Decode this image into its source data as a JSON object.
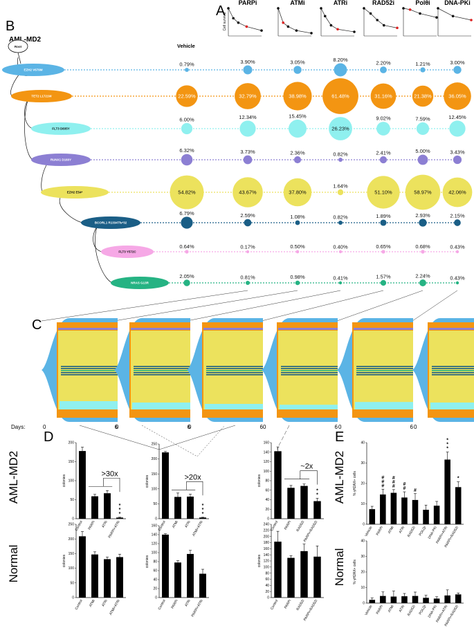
{
  "panels": {
    "A": "A",
    "B": "B",
    "C": "C",
    "D": "D",
    "E": "E"
  },
  "sample_title": "AML-MD2",
  "vehicle_label": "Vehicle",
  "root_label": "Root",
  "treatments": [
    "PARPi",
    "ATMi",
    "ATRi",
    "RAD52i",
    "Polθi",
    "DNA-PKi"
  ],
  "survival_ylabel": "Cell survival",
  "clones": [
    {
      "name": "EZH2 V679M",
      "color": "#5bb4e5",
      "text_color": "#ffffff",
      "values": [
        "0.79%",
        "3.90%",
        "3.05%",
        "8.20%",
        "2.20%",
        "1.21%",
        "3.00%"
      ],
      "numeric": [
        0.79,
        3.9,
        3.05,
        8.2,
        2.2,
        1.21,
        3.0
      ]
    },
    {
      "name": "TET2 L1721W",
      "color": "#f39512",
      "text_color": "#ffffff",
      "values": [
        "22.59%",
        "32.79%",
        "38.98%",
        "61.48%",
        "31.16%",
        "21.38%",
        "36.05%"
      ],
      "numeric": [
        22.59,
        32.79,
        38.98,
        61.48,
        31.16,
        21.38,
        36.05
      ]
    },
    {
      "name": "FLT3 D835Y",
      "color": "#8ff0ef",
      "text_color": "#111111",
      "values": [
        "6.00%",
        "12.34%",
        "15.45%",
        "26.23%",
        "9.02%",
        "7.59%",
        "12.45%"
      ],
      "numeric": [
        6.0,
        12.34,
        15.45,
        26.23,
        9.02,
        7.59,
        12.45
      ]
    },
    {
      "name": "RUNX1 D160Y",
      "color": "#8c7fd3",
      "text_color": "#ffffff",
      "values": [
        "6.32%",
        "3.73%",
        "2.36%",
        "0.82%",
        "2.41%",
        "5.00%",
        "3.43%"
      ],
      "numeric": [
        6.32,
        3.73,
        2.36,
        0.82,
        2.41,
        5.0,
        3.43
      ]
    },
    {
      "name": "EZH2 E54*",
      "color": "#ece25d",
      "text_color": "#111111",
      "values": [
        "54.82%",
        "43.67%",
        "37.80%",
        "1.64%",
        "51.10%",
        "58.97%",
        "42.06%"
      ],
      "numeric": [
        54.82,
        43.67,
        37.8,
        1.64,
        51.1,
        58.97,
        42.06
      ]
    },
    {
      "name": "BCORL1 R1334Tfs*32",
      "color": "#1a5e86",
      "text_color": "#ffffff",
      "values": [
        "6.79%",
        "2.59%",
        "1.08%",
        "0.82%",
        "1.89%",
        "2.93%",
        "2.15%"
      ],
      "numeric": [
        6.79,
        2.59,
        1.08,
        0.82,
        1.89,
        2.93,
        2.15
      ]
    },
    {
      "name": "FLT3 Y572C",
      "color": "#f6a8e6",
      "text_color": "#111111",
      "values": [
        "0.64%",
        "0.17%",
        "0.50%",
        "0.40%",
        "0.65%",
        "0.68%",
        "0.43%"
      ],
      "numeric": [
        0.64,
        0.17,
        0.5,
        0.4,
        0.65,
        0.68,
        0.43
      ]
    },
    {
      "name": "NRAS G13R",
      "color": "#25b383",
      "text_color": "#ffffff",
      "values": [
        "2.05%",
        "0.81%",
        "0.98%",
        "0.41%",
        "1.57%",
        "2.24%",
        "0.43%"
      ],
      "numeric": [
        2.05,
        0.81,
        0.98,
        0.41,
        1.57,
        2.24,
        0.43
      ]
    }
  ],
  "fishplots": {
    "titles": [
      "PARPi",
      "ATMi",
      "ATRi",
      "RAD52i",
      "Polθi",
      "DNA-PKi"
    ],
    "days_label": "Days:",
    "day_start": "0",
    "day_end": "6"
  },
  "chart_data": [
    {
      "id": "D-aml-1",
      "type": "bar",
      "title": "AML-MD2",
      "ylabel": "colonies",
      "ylim": [
        0,
        200
      ],
      "yticks": [
        "0",
        "50",
        "100",
        "150",
        "200"
      ],
      "categories": [
        "Control",
        "PARPi",
        "ATRi",
        "PARPi+ATRi"
      ],
      "values": [
        178,
        59,
        67,
        3
      ],
      "errors": [
        10,
        5,
        7,
        1
      ],
      "fold": ">30x",
      "stars": "***"
    },
    {
      "id": "D-aml-2",
      "type": "bar",
      "ylabel": "colonies",
      "ylim": [
        0,
        250
      ],
      "yticks": [
        "0",
        "50",
        "100",
        "150",
        "200",
        "250"
      ],
      "categories": [
        "Control",
        "ATMi",
        "ATRi",
        "ATMi+ATRi"
      ],
      "values": [
        222,
        73,
        74,
        4
      ],
      "errors": [
        3,
        13,
        8,
        1
      ],
      "fold": ">20x",
      "stars": "***"
    },
    {
      "id": "D-aml-3",
      "type": "bar",
      "ylabel": "colonies",
      "ylim": [
        0,
        160
      ],
      "yticks": [
        "0",
        "20",
        "40",
        "60",
        "80",
        "100",
        "120",
        "140",
        "160"
      ],
      "categories": [
        "Control",
        "PARPi",
        "RAD52i",
        "PARPi+RAD52i"
      ],
      "values": [
        142,
        65,
        69,
        37
      ],
      "errors": [
        9,
        5,
        4,
        6
      ],
      "fold": "~2x",
      "stars": "**"
    },
    {
      "id": "D-nor-1",
      "type": "bar",
      "title": "Normal",
      "ylabel": "colonies",
      "ylim": [
        0,
        250
      ],
      "yticks": [
        "0",
        "50",
        "100",
        "150",
        "200",
        "250"
      ],
      "categories": [
        "Control",
        "ATMi",
        "ATRi",
        "ATMi+ATRi"
      ],
      "values": [
        209,
        147,
        131,
        138
      ],
      "errors": [
        16,
        9,
        7,
        10
      ]
    },
    {
      "id": "D-nor-2",
      "type": "bar",
      "ylabel": "colonies",
      "ylim": [
        0,
        160
      ],
      "yticks": [
        "0",
        "20",
        "40",
        "60",
        "80",
        "100",
        "120",
        "140",
        "160"
      ],
      "categories": [
        "Control",
        "PARPi",
        "ATRi",
        "PARPi+ATRi"
      ],
      "values": [
        140,
        78,
        97,
        53
      ],
      "errors": [
        2,
        4,
        8,
        10
      ]
    },
    {
      "id": "D-nor-3",
      "type": "bar",
      "ylabel": "colonies",
      "ylim": [
        0,
        240
      ],
      "yticks": [
        "0",
        "20",
        "40",
        "60",
        "80",
        "100",
        "120",
        "140",
        "160",
        "180",
        "200",
        "220",
        "240"
      ],
      "categories": [
        "Control",
        "PARPi",
        "RAD52i",
        "PARPi+RAD52i"
      ],
      "values": [
        183,
        130,
        152,
        134
      ],
      "errors": [
        34,
        7,
        23,
        35
      ]
    },
    {
      "id": "E-aml",
      "type": "bar",
      "title": "AML-MD2",
      "ylabel": "% γH2AX+ cells",
      "ylim": [
        0,
        40
      ],
      "yticks": [
        "0",
        "10",
        "20",
        "30",
        "40"
      ],
      "categories": [
        "Vehicle",
        "PARPi",
        "ATMi",
        "ATRi",
        "RAD52i",
        "POLQi",
        "DNA-PKi",
        "PARPi+ATRi",
        "PARPi+RAD52i"
      ],
      "values": [
        7.4,
        14.6,
        15.4,
        13.1,
        11.9,
        7.1,
        9.1,
        31.7,
        18.2
      ],
      "errors": [
        1.4,
        2.6,
        1.6,
        2.8,
        3.1,
        2.3,
        2.1,
        3.7,
        2.6
      ],
      "marks": [
        "",
        "###",
        "###",
        "##",
        "#",
        "",
        "",
        "***",
        "*"
      ]
    },
    {
      "id": "E-nor",
      "type": "bar",
      "title": "Normal",
      "ylabel": "% γH2AX+ cells",
      "ylim": [
        0,
        40
      ],
      "yticks": [
        "0",
        "10",
        "20",
        "30",
        "40"
      ],
      "categories": [
        "Vehicle",
        "PARPi",
        "ATMi",
        "ATRi",
        "RAD52i",
        "POLQi",
        "DNA-PKi",
        "PARPi+ATRi",
        "PARPi+RAD52i"
      ],
      "values": [
        2.1,
        4.6,
        4.2,
        4.4,
        4.6,
        3.4,
        2.9,
        4.9,
        5.6
      ],
      "errors": [
        1.2,
        2.6,
        3.5,
        1.8,
        2.5,
        1.6,
        1.2,
        3.6,
        0.9
      ]
    }
  ]
}
